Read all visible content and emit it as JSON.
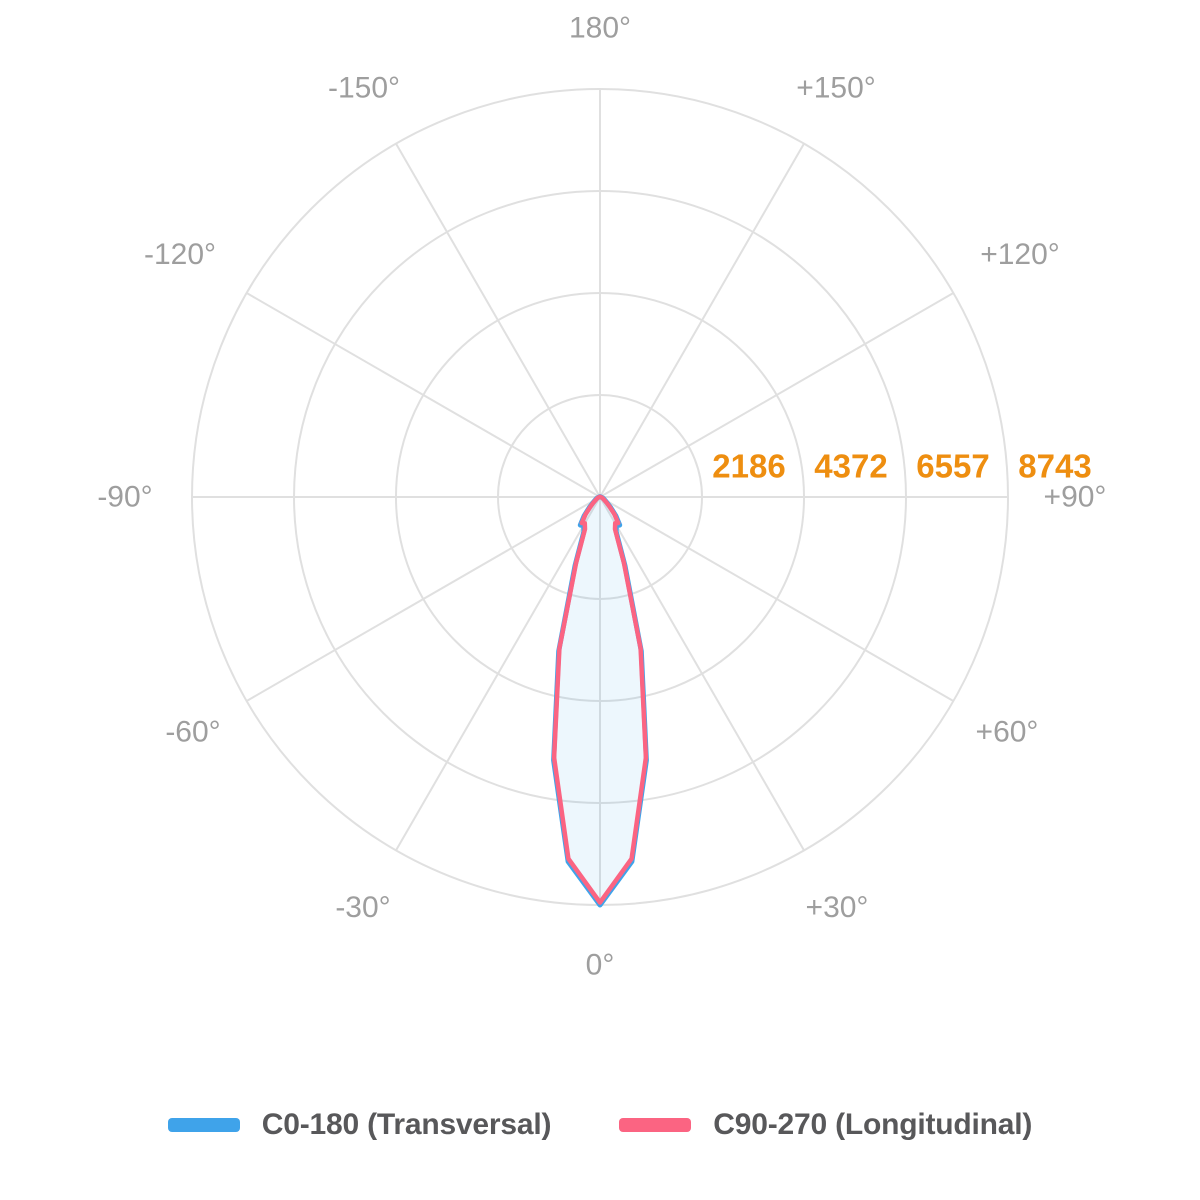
{
  "colors": {
    "grid": "#E0E0E0",
    "angle_label": "#9E9E9E",
    "value_label": "#EE8E10",
    "legend_text": "#58585A",
    "c0_blue": "#3FA3EA",
    "c90_pink": "#FB6482",
    "beam_fill": "rgba(54,162,235,0.09)"
  },
  "legend": {
    "items": [
      {
        "label": "C0-180 (Transversal)",
        "color": "#3FA3EA"
      },
      {
        "label": "C90-270 (Longitudinal)",
        "color": "#FB6482"
      }
    ]
  },
  "chart_data": {
    "type": "polar",
    "subtype": "photometric-intensity-distribution",
    "unit": "cd",
    "scale_max": 8743,
    "radial_ticks": [
      2186,
      4372,
      6557,
      8743
    ],
    "radial_tick_labels": [
      "2186",
      "4372",
      "6557",
      "8743"
    ],
    "angle_step_spokes_deg": 30,
    "angle_labels": [
      {
        "text": "180°",
        "angle": 180
      },
      {
        "text": "-150°",
        "angle": -150
      },
      {
        "text": "+150°",
        "angle": 150
      },
      {
        "text": "-120°",
        "angle": -120
      },
      {
        "text": "+120°",
        "angle": 120
      },
      {
        "text": "-90°",
        "angle": -90
      },
      {
        "text": "+90°",
        "angle": 90
      },
      {
        "text": "-60°",
        "angle": -60
      },
      {
        "text": "+60°",
        "angle": 60
      },
      {
        "text": "-30°",
        "angle": -30
      },
      {
        "text": "+30°",
        "angle": 30
      },
      {
        "text": "0°",
        "angle": 0
      }
    ],
    "angles_deg": [
      0,
      5,
      10,
      15,
      20,
      25,
      30,
      35,
      40,
      45,
      50,
      55,
      60,
      65,
      70,
      75,
      80,
      85,
      90,
      95,
      100,
      105,
      110,
      115,
      120,
      125,
      130,
      135,
      140,
      145,
      150,
      155,
      160,
      165,
      170,
      175,
      180
    ],
    "symmetric_about_0_180": true,
    "series": [
      {
        "name": "C0-180 (Transversal)",
        "color": "#3FA3EA",
        "values": [
          8743,
          7840,
          5730,
          3420,
          1560,
          815,
          705,
          735,
          530,
          330,
          210,
          145,
          110,
          82,
          62,
          47,
          34,
          24,
          16,
          8,
          8,
          8,
          8,
          8,
          8,
          8,
          8,
          8,
          8,
          8,
          8,
          8,
          8,
          8,
          8,
          8,
          8
        ]
      },
      {
        "name": "C90-270 (Longitudinal)",
        "color": "#FB6482",
        "values": [
          8690,
          7780,
          5670,
          3360,
          1500,
          760,
          650,
          680,
          480,
          285,
          175,
          115,
          85,
          62,
          46,
          34,
          24,
          16,
          10,
          4,
          4,
          4,
          4,
          4,
          4,
          4,
          4,
          4,
          4,
          4,
          4,
          4,
          4,
          4,
          4,
          4,
          4
        ]
      }
    ],
    "legend_position": "bottom",
    "grid": true
  }
}
